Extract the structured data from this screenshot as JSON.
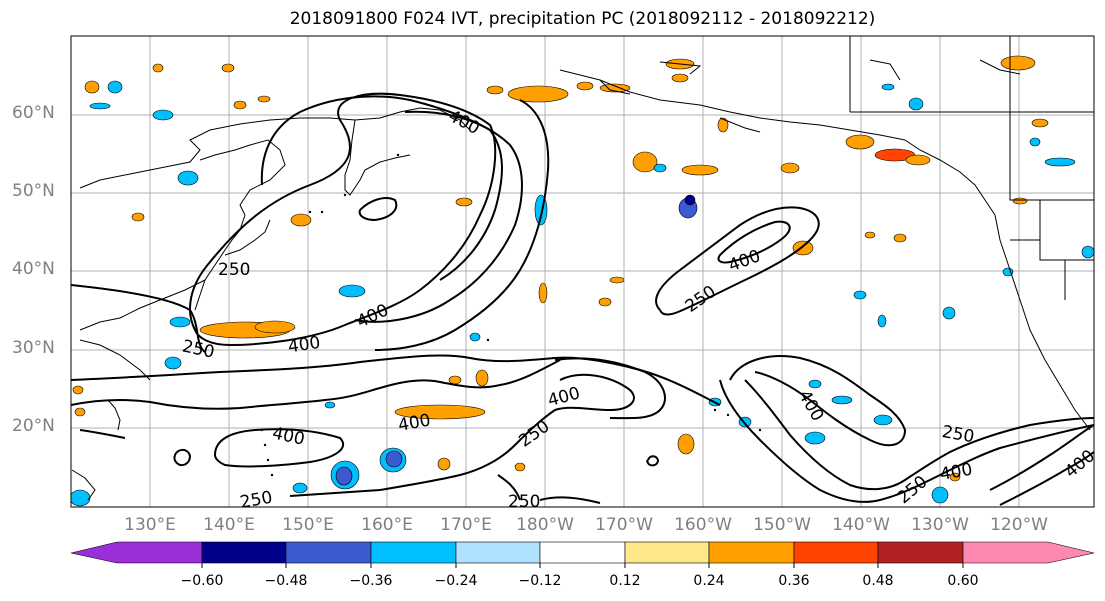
{
  "title": "2018091800 F024 IVT, precipitation PC (2018092112 - 2018092212)",
  "latitude_labels": [
    "60°N",
    "50°N",
    "40°N",
    "30°N",
    "20°N"
  ],
  "longitude_labels": [
    "130°E",
    "140°E",
    "150°E",
    "160°E",
    "170°E",
    "180°W",
    "170°W",
    "160°W",
    "150°W",
    "140°W",
    "130°W",
    "120°W"
  ],
  "ivt_contour_labels": [
    "400",
    "250",
    "400",
    "250",
    "400",
    "250",
    "400",
    "400",
    "250",
    "400",
    "250",
    "250",
    "400",
    "400",
    "250",
    "400",
    "250",
    "400",
    "250",
    "400"
  ],
  "colorbar": {
    "tick_labels": [
      "−0.60",
      "−0.48",
      "−0.36",
      "−0.24",
      "−0.12",
      "0.12",
      "0.24",
      "0.36",
      "0.48",
      "0.60"
    ],
    "colors": [
      "#9b30d9",
      "#00008b",
      "#3a5bd0",
      "#00bfff",
      "#b0e0ff",
      "#ffffff",
      "#ffe88c",
      "#ffa000",
      "#ff4500",
      "#b22222",
      "#ff88b0"
    ]
  },
  "colors": {
    "land_outline": "#000000",
    "grid": "#b0b0b0",
    "ivt_contour": "#000000",
    "axis_text": "#808080"
  }
}
